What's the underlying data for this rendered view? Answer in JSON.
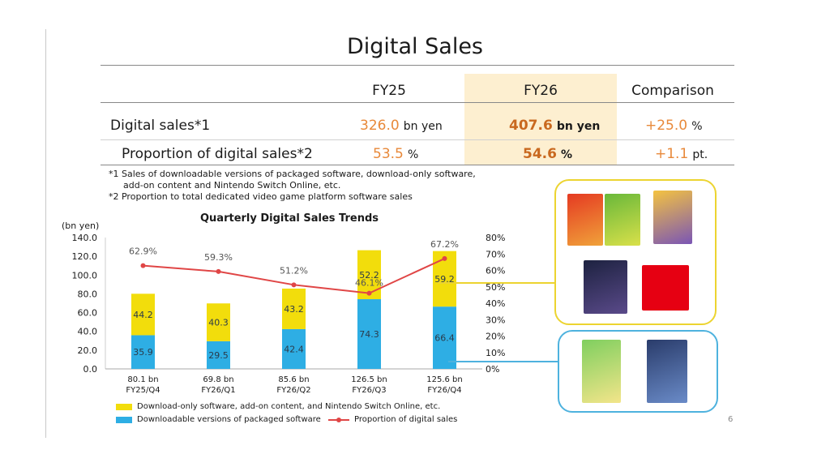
{
  "title": "Digital Sales",
  "table": {
    "headers": [
      "FY25",
      "FY26",
      "Comparison"
    ],
    "rows": [
      {
        "label": "Digital sales*1",
        "fy25": "326.0",
        "fy25_unit": "bn yen",
        "fy26": "407.6",
        "fy26_unit": "bn yen",
        "comp": "+25.0",
        "comp_unit": "%"
      },
      {
        "label": "Proportion of digital sales*2",
        "fy25": "53.5",
        "fy25_unit": "%",
        "fy26": "54.6",
        "fy26_unit": "%",
        "comp": "+1.1",
        "comp_unit": "pt."
      }
    ]
  },
  "notes": [
    "*1 Sales of downloadable versions of packaged software, download-only software,",
    "add-on content and Nintendo Switch Online, etc.",
    "*2 Proportion to total dedicated video game platform software sales"
  ],
  "page_number": "6",
  "colors": {
    "yellow": "#f2dd0c",
    "blue": "#2eaee4",
    "line": "#e04646",
    "accent": "#e8893a",
    "box_yellow": "#ecd430",
    "box_blue": "#4eb2de"
  },
  "chart_data": {
    "type": "bar",
    "title": "Quarterly Digital Sales Trends",
    "ylabel": "(bn yen)",
    "ylim": [
      0,
      140
    ],
    "y_ticks": [
      "140.0",
      "120.0",
      "100.0",
      "80.0",
      "60.0",
      "40.0",
      "20.0",
      "0.0"
    ],
    "y2_ticks": [
      "80%",
      "70%",
      "60%",
      "50%",
      "40%",
      "30%",
      "20%",
      "10%",
      "0%"
    ],
    "y2lim": [
      0,
      80
    ],
    "categories": [
      "FY25/Q4",
      "FY26/Q1",
      "FY26/Q2",
      "FY26/Q3",
      "FY26/Q4"
    ],
    "totals": [
      "80.1 bn",
      "69.8 bn",
      "85.6 bn",
      "126.5 bn",
      "125.6 bn"
    ],
    "series": [
      {
        "name": "Downloadable versions of packaged software",
        "values": [
          35.9,
          29.5,
          42.4,
          74.3,
          66.4
        ]
      },
      {
        "name": "Download-only software, add-on content, and Nintendo Switch Online, etc.",
        "values": [
          44.2,
          40.3,
          43.2,
          52.2,
          59.2
        ]
      }
    ],
    "line": {
      "name": "Proportion of digital sales",
      "values": [
        62.9,
        59.3,
        51.2,
        46.1,
        67.2
      ],
      "labels": [
        "62.9%",
        "59.3%",
        "51.2%",
        "46.1%",
        "67.2%"
      ]
    }
  }
}
